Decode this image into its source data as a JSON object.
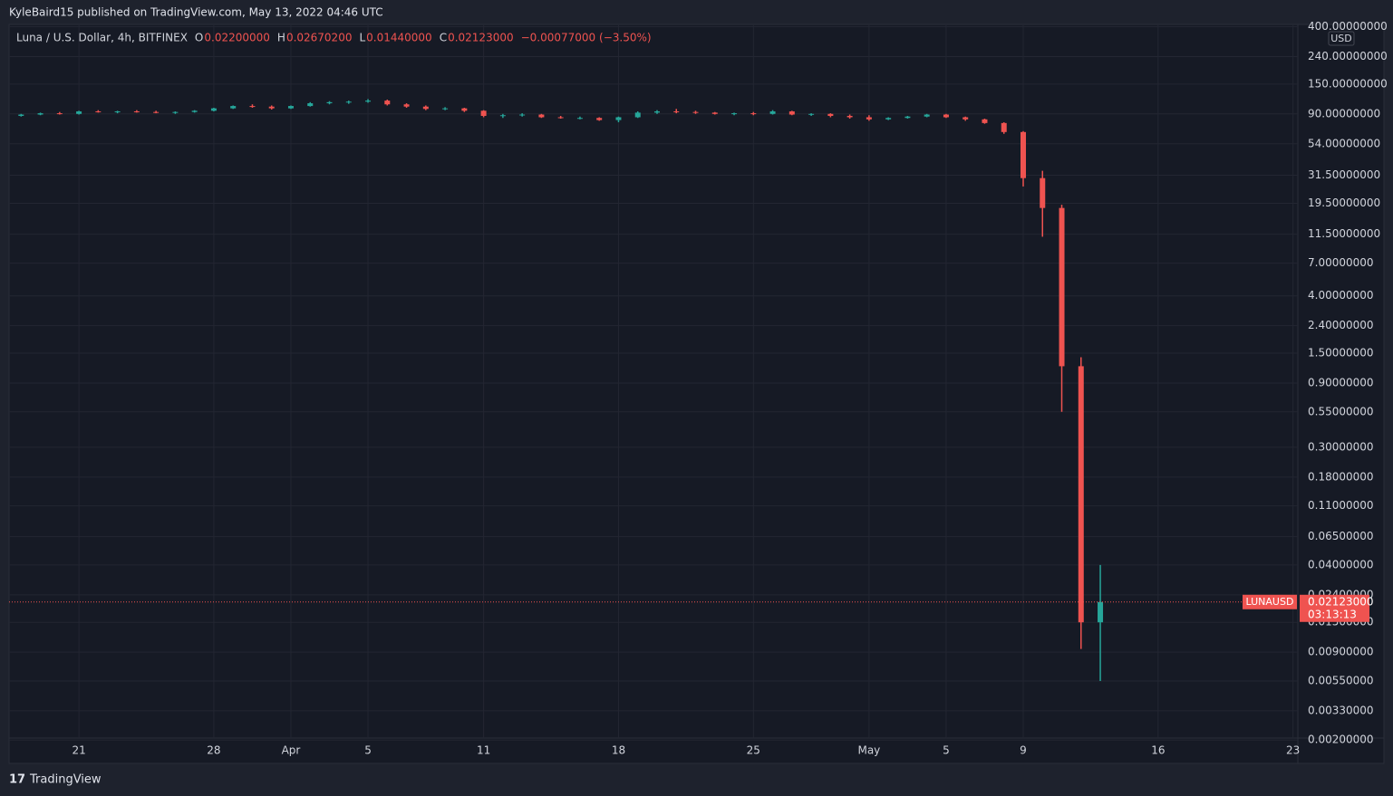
{
  "header": {
    "published": "KyleBaird15 published on TradingView.com, May 13, 2022 04:46 UTC"
  },
  "footer": {
    "brand": "TradingView"
  },
  "chart_data": {
    "type": "candlestick",
    "log_scale": true,
    "grid": true,
    "legend": {
      "symbol": "Luna / U.S. Dollar, 4h, BITFINEX",
      "items": [
        {
          "label": "O",
          "value": "0.02200000"
        },
        {
          "label": "H",
          "value": "0.02670200"
        },
        {
          "label": "L",
          "value": "0.01440000"
        },
        {
          "label": "C",
          "value": "0.02123000"
        }
      ],
      "change": "−0.00077000 (−3.50%)"
    },
    "y_unit": "USD",
    "symbol_tag": "LUNAUSD",
    "countdown": "03:13:13",
    "last_price": {
      "value": 0.02123,
      "label": "0.02123000"
    },
    "up_color": "#26a69a",
    "down_color": "#ef5350",
    "xlim": [
      "2022-03-17T09:00:00Z",
      "2022-05-23T06:00:00Z"
    ],
    "xticks": [
      {
        "value": "2022-03-21",
        "label": "21"
      },
      {
        "value": "2022-03-28",
        "label": "28"
      },
      {
        "value": "2022-04-01",
        "label": "Apr"
      },
      {
        "value": "2022-04-05",
        "label": "5"
      },
      {
        "value": "2022-04-11",
        "label": "11"
      },
      {
        "value": "2022-04-18",
        "label": "18"
      },
      {
        "value": "2022-04-25",
        "label": "25"
      },
      {
        "value": "2022-05-01",
        "label": "May"
      },
      {
        "value": "2022-05-05",
        "label": "5"
      },
      {
        "value": "2022-05-09",
        "label": "9"
      },
      {
        "value": "2022-05-16",
        "label": "16"
      },
      {
        "value": "2022-05-23",
        "label": "23"
      }
    ],
    "ylim": [
      0.00207,
      416
    ],
    "yticks": [
      {
        "value": 400,
        "label": "400.00000000"
      },
      {
        "value": 240,
        "label": "240.00000000"
      },
      {
        "value": 150,
        "label": "150.00000000"
      },
      {
        "value": 90,
        "label": "90.00000000"
      },
      {
        "value": 54,
        "label": "54.00000000"
      },
      {
        "value": 31.5,
        "label": "31.50000000"
      },
      {
        "value": 19.5,
        "label": "19.50000000"
      },
      {
        "value": 11.5,
        "label": "11.50000000"
      },
      {
        "value": 7,
        "label": "7.00000000"
      },
      {
        "value": 4,
        "label": "4.00000000"
      },
      {
        "value": 2.4,
        "label": "2.40000000"
      },
      {
        "value": 1.5,
        "label": "1.50000000"
      },
      {
        "value": 0.9,
        "label": "0.90000000"
      },
      {
        "value": 0.55,
        "label": "0.55000000"
      },
      {
        "value": 0.3,
        "label": "0.30000000"
      },
      {
        "value": 0.18,
        "label": "0.18000000"
      },
      {
        "value": 0.11,
        "label": "0.11000000"
      },
      {
        "value": 0.065,
        "label": "0.06500000"
      },
      {
        "value": 0.04,
        "label": "0.04000000"
      },
      {
        "value": 0.024,
        "label": "0.02400000"
      },
      {
        "value": 0.015,
        "label": "0.01500000"
      },
      {
        "value": 0.009,
        "label": "0.00900000"
      },
      {
        "value": 0.0055,
        "label": "0.00550000"
      },
      {
        "value": 0.0033,
        "label": "0.00330000"
      },
      {
        "value": 0.002,
        "label": "0.00200000"
      }
    ],
    "x": [
      "2022-03-18",
      "2022-03-19",
      "2022-03-20",
      "2022-03-21",
      "2022-03-22",
      "2022-03-23",
      "2022-03-24",
      "2022-03-25",
      "2022-03-26",
      "2022-03-27",
      "2022-03-28",
      "2022-03-29",
      "2022-03-30",
      "2022-03-31",
      "2022-04-01",
      "2022-04-02",
      "2022-04-03",
      "2022-04-04",
      "2022-04-05",
      "2022-04-06",
      "2022-04-07",
      "2022-04-08",
      "2022-04-09",
      "2022-04-10",
      "2022-04-11",
      "2022-04-12",
      "2022-04-13",
      "2022-04-14",
      "2022-04-15",
      "2022-04-16",
      "2022-04-17",
      "2022-04-18",
      "2022-04-19",
      "2022-04-20",
      "2022-04-21",
      "2022-04-22",
      "2022-04-23",
      "2022-04-24",
      "2022-04-25",
      "2022-04-26",
      "2022-04-27",
      "2022-04-28",
      "2022-04-29",
      "2022-04-30",
      "2022-05-01",
      "2022-05-02",
      "2022-05-03",
      "2022-05-04",
      "2022-05-05",
      "2022-05-06",
      "2022-05-07",
      "2022-05-08",
      "2022-05-09",
      "2022-05-10",
      "2022-05-11",
      "2022-05-12",
      "2022-05-13"
    ],
    "open": [
      87,
      89,
      91,
      90,
      94,
      93,
      94,
      93,
      92,
      93,
      95,
      99,
      103,
      102,
      99,
      103,
      108,
      110,
      111,
      113,
      106,
      102,
      98,
      99,
      95,
      87,
      88,
      89,
      85,
      84,
      84,
      81,
      85,
      92,
      94,
      93,
      92,
      90,
      91,
      90,
      94,
      89,
      90,
      87,
      85,
      82,
      84,
      86,
      89,
      85,
      82,
      77,
      66,
      30,
      18,
      1.2,
      0.015
    ],
    "high": [
      90,
      92,
      93,
      95,
      96,
      95,
      96,
      95,
      94,
      96,
      100,
      104,
      106,
      104,
      104,
      110,
      112,
      113,
      116,
      115,
      108,
      104,
      101,
      100,
      96,
      90,
      91,
      90,
      87,
      86,
      85,
      86,
      94,
      96,
      98,
      95,
      93,
      92,
      93,
      96,
      95,
      91,
      91,
      89,
      88,
      85,
      87,
      90,
      90,
      86,
      83,
      78,
      67,
      34,
      19,
      1.4,
      0.04
    ],
    "low": [
      86,
      88,
      89,
      89,
      92,
      91,
      92,
      91,
      90,
      92,
      94,
      98,
      100,
      97,
      98,
      102,
      106,
      107,
      109,
      104,
      100,
      96,
      96,
      93,
      85,
      84,
      86,
      84,
      83,
      82,
      80,
      78,
      84,
      90,
      91,
      90,
      89,
      88,
      88,
      89,
      88,
      87,
      85,
      83,
      80,
      81,
      83,
      85,
      84,
      80,
      76,
      64,
      26,
      11,
      0.55,
      0.0095,
      0.0055
    ],
    "close": [
      89,
      91,
      90,
      94,
      93,
      94,
      93,
      92,
      93,
      95,
      99,
      103,
      102,
      99,
      103,
      108,
      110,
      111,
      113,
      106,
      102,
      98,
      99,
      95,
      87,
      88,
      89,
      85,
      84,
      84,
      81,
      85,
      92,
      94,
      93,
      92,
      90,
      91,
      90,
      94,
      89,
      90,
      87,
      85,
      82,
      84,
      86,
      89,
      85,
      82,
      77,
      66,
      30,
      18,
      1.2,
      0.015,
      0.02123
    ]
  }
}
